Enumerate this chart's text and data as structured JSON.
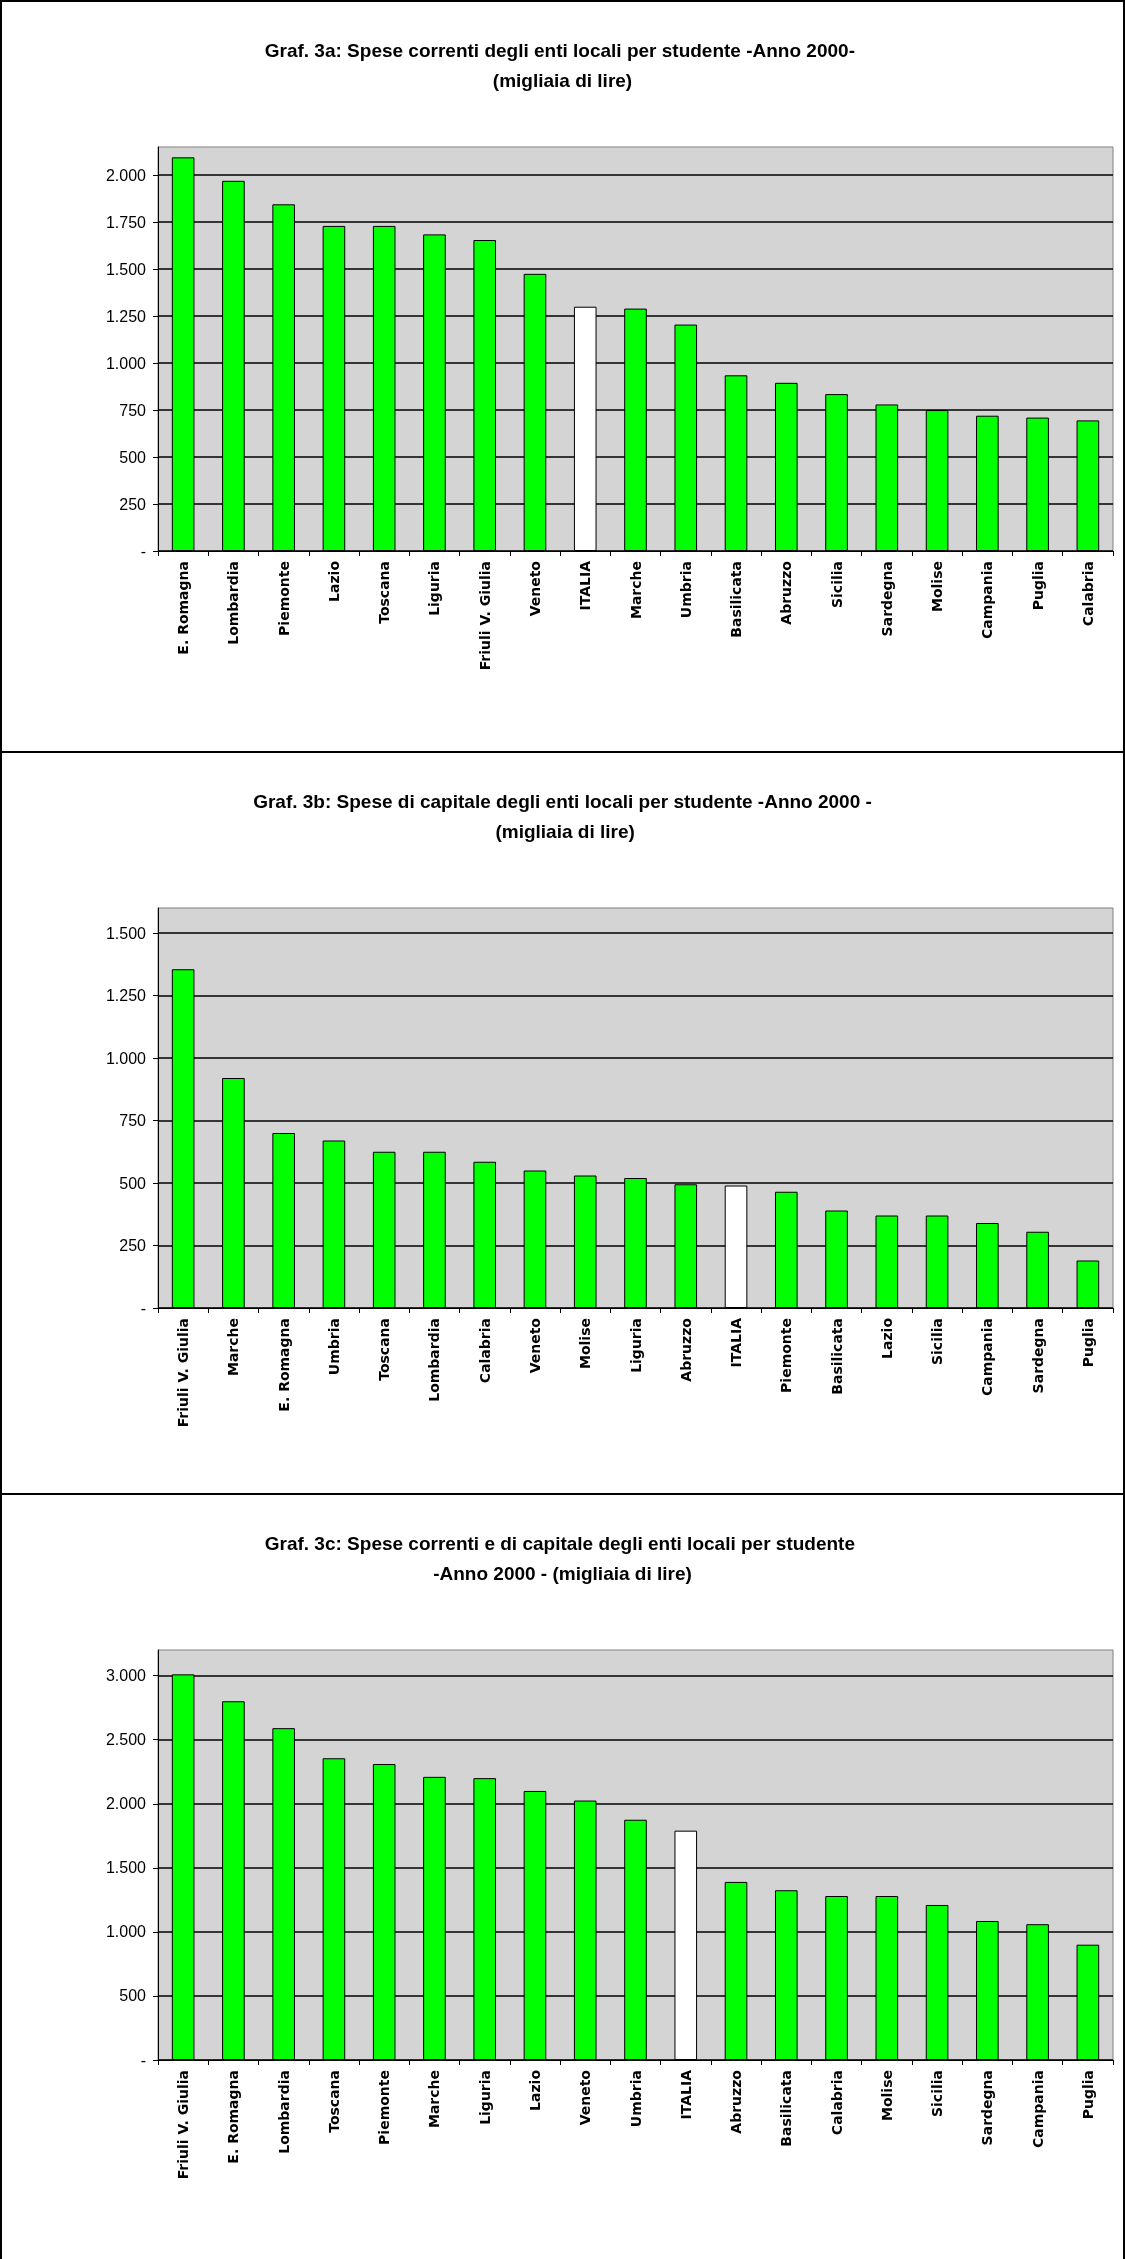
{
  "chart_data": [
    {
      "type": "bar",
      "title": "Graf. 3a: Spese correnti degli enti locali per studente -Anno 2000- (migliaia di lire)",
      "categories": [
        "E. Romagna",
        "Lombardia",
        "Piemonte",
        "Lazio",
        "Toscana",
        "Liguria",
        "Friuli V. Giulia",
        "Veneto",
        "ITALIA",
        "Marche",
        "Umbria",
        "Basilicata",
        "Abruzzo",
        "Sicilia",
        "Sardegna",
        "Molise",
        "Campania",
        "Puglia",
        "Calabria"
      ],
      "values": [
        2095,
        1970,
        1845,
        1730,
        1730,
        1685,
        1655,
        1475,
        1300,
        1290,
        1205,
        935,
        895,
        835,
        780,
        750,
        720,
        710,
        695
      ],
      "colors": [
        "#00ff00",
        "#00ff00",
        "#00ff00",
        "#00ff00",
        "#00ff00",
        "#00ff00",
        "#00ff00",
        "#00ff00",
        "#ffffff",
        "#00ff00",
        "#00ff00",
        "#00ff00",
        "#00ff00",
        "#00ff00",
        "#00ff00",
        "#00ff00",
        "#00ff00",
        "#00ff00",
        "#00ff00"
      ],
      "ylim": [
        0,
        2150
      ],
      "yticks": [
        {
          "value": 0,
          "label": "-"
        },
        {
          "value": 250,
          "label": "250"
        },
        {
          "value": 500,
          "label": "500"
        },
        {
          "value": 750,
          "label": "750"
        },
        {
          "value": 1000,
          "label": "1.000"
        },
        {
          "value": 1250,
          "label": "1.250"
        },
        {
          "value": 1500,
          "label": "1.500"
        },
        {
          "value": 1750,
          "label": "1.750"
        },
        {
          "value": 2000,
          "label": "2.000"
        }
      ],
      "grid": "y"
    },
    {
      "type": "bar",
      "title": "Graf. 3b: Spese di capitale degli enti locali per studente -Anno 2000 - (migliaia di lire)",
      "categories": [
        "Friuli V. Giulia",
        "Marche",
        "E. Romagna",
        "Umbria",
        "Toscana",
        "Lombardia",
        "Calabria",
        "Veneto",
        "Molise",
        "Liguria",
        "Abruzzo",
        "ITALIA",
        "Piemonte",
        "Basilicata",
        "Lazio",
        "Sicilia",
        "Campania",
        "Sardegna",
        "Puglia"
      ],
      "values": [
        1355,
        920,
        700,
        670,
        625,
        625,
        585,
        550,
        530,
        520,
        495,
        490,
        465,
        390,
        370,
        370,
        340,
        305,
        190
      ],
      "colors": [
        "#00ff00",
        "#00ff00",
        "#00ff00",
        "#00ff00",
        "#00ff00",
        "#00ff00",
        "#00ff00",
        "#00ff00",
        "#00ff00",
        "#00ff00",
        "#00ff00",
        "#ffffff",
        "#00ff00",
        "#00ff00",
        "#00ff00",
        "#00ff00",
        "#00ff00",
        "#00ff00",
        "#00ff00"
      ],
      "ylim": [
        0,
        1600
      ],
      "yticks": [
        {
          "value": 0,
          "label": "-"
        },
        {
          "value": 250,
          "label": "250"
        },
        {
          "value": 500,
          "label": "500"
        },
        {
          "value": 750,
          "label": "750"
        },
        {
          "value": 1000,
          "label": "1.000"
        },
        {
          "value": 1250,
          "label": "1.250"
        },
        {
          "value": 1500,
          "label": "1.500"
        }
      ],
      "grid": "y"
    },
    {
      "type": "bar",
      "title": "Graf. 3c: Spese correnti e di capitale degli enti locali per studente -Anno 2000 - (migliaia di lire)",
      "categories": [
        "Friuli V. Giulia",
        "E. Romagna",
        "Lombardia",
        "Toscana",
        "Piemonte",
        "Marche",
        "Liguria",
        "Lazio",
        "Veneto",
        "Umbria",
        "ITALIA",
        "Abruzzo",
        "Basilicata",
        "Calabria",
        "Molise",
        "Sicilia",
        "Sardegna",
        "Campania",
        "Puglia"
      ],
      "values": [
        3010,
        2800,
        2590,
        2355,
        2310,
        2210,
        2200,
        2100,
        2025,
        1875,
        1790,
        1390,
        1325,
        1280,
        1280,
        1210,
        1085,
        1060,
        900
      ],
      "colors": [
        "#00ff00",
        "#00ff00",
        "#00ff00",
        "#00ff00",
        "#00ff00",
        "#00ff00",
        "#00ff00",
        "#00ff00",
        "#00ff00",
        "#00ff00",
        "#ffffff",
        "#00ff00",
        "#00ff00",
        "#00ff00",
        "#00ff00",
        "#00ff00",
        "#00ff00",
        "#00ff00",
        "#00ff00"
      ],
      "ylim": [
        0,
        3200
      ],
      "yticks": [
        {
          "value": 0,
          "label": "-"
        },
        {
          "value": 500,
          "label": "500"
        },
        {
          "value": 1000,
          "label": "1.000"
        },
        {
          "value": 1500,
          "label": "1.500"
        },
        {
          "value": 2000,
          "label": "2.000"
        },
        {
          "value": 2500,
          "label": "2.500"
        },
        {
          "value": 3000,
          "label": "3.000"
        }
      ],
      "grid": "y"
    }
  ]
}
